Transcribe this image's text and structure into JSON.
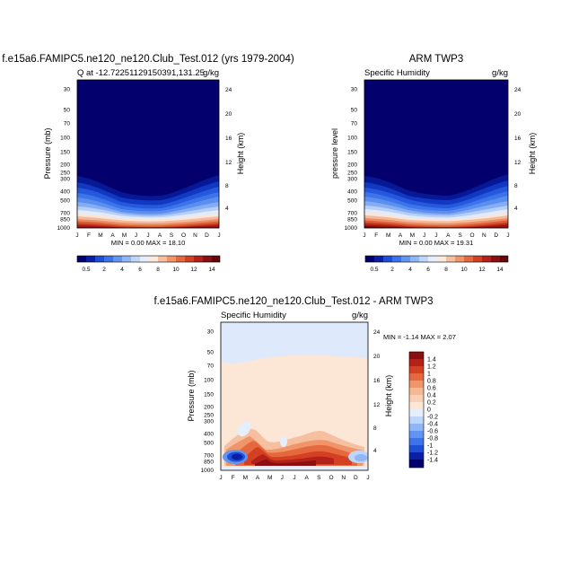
{
  "chart_data": [
    {
      "type": "heatmap",
      "title": "f.e15a6.FAMIPC5.ne120_ne120.Club_Test.012 (yrs 1979-2004)",
      "left_string": "Q at -12.72251129150391,131.25",
      "right_string": "g/kg",
      "ylabel": "Pressure (mb)",
      "ylabel_right": "Height (km)",
      "x_ticks": [
        "J",
        "F",
        "M",
        "A",
        "M",
        "J",
        "J",
        "A",
        "S",
        "O",
        "N",
        "D",
        "J"
      ],
      "y_ticks": [
        "30",
        "50",
        "70",
        "100",
        "150",
        "200",
        "250",
        "300",
        "400",
        "500",
        "700",
        "850",
        "1000"
      ],
      "y_ticks_right": [
        "24",
        "20",
        "16",
        "12",
        "8",
        "4"
      ],
      "stats": "MIN =   0.00 MAX =  18.10",
      "colorbar_labels": [
        "0.5",
        "2",
        "4",
        "6",
        "8",
        "10",
        "12",
        "14"
      ],
      "colorbar_colors": [
        "#03006d",
        "#0a1fa5",
        "#1d4fd6",
        "#3d73ea",
        "#6394f2",
        "#8fb6f6",
        "#bdd6fa",
        "#e4eefc",
        "#fde9dc",
        "#f6c0a0",
        "#ef9569",
        "#e5683e",
        "#d34022",
        "#b4201a",
        "#8a0f10",
        "#650709"
      ],
      "values_gkg_by_pressure_level": [
        {
          "p": 1000,
          "monthly": [
            16.8,
            17.2,
            17.8,
            17.2,
            15.2,
            13.0,
            11.8,
            11.8,
            12.6,
            14.2,
            15.8,
            16.8,
            16.8
          ]
        },
        {
          "p": 850,
          "monthly": [
            12.2,
            12.4,
            12.6,
            12.2,
            10.8,
            9.0,
            8.2,
            8.3,
            8.8,
            9.8,
            11.0,
            12.0,
            12.2
          ]
        },
        {
          "p": 700,
          "monthly": [
            7.8,
            7.9,
            8.0,
            7.6,
            6.4,
            5.0,
            4.4,
            4.4,
            4.8,
            5.6,
            6.6,
            7.6,
            7.8
          ]
        },
        {
          "p": 500,
          "monthly": [
            3.8,
            3.8,
            3.6,
            3.2,
            2.4,
            1.6,
            1.3,
            1.3,
            1.5,
            1.9,
            2.6,
            3.5,
            3.8
          ]
        },
        {
          "p": 400,
          "monthly": [
            2.2,
            2.2,
            2.0,
            1.7,
            1.2,
            0.8,
            0.6,
            0.6,
            0.7,
            0.9,
            1.4,
            2.0,
            2.2
          ]
        },
        {
          "p": 300,
          "monthly": [
            0.9,
            0.9,
            0.8,
            0.7,
            0.4,
            0.25,
            0.2,
            0.2,
            0.25,
            0.35,
            0.6,
            0.9,
            0.9
          ]
        },
        {
          "p": 200,
          "monthly": [
            0.1,
            0.1,
            0.1,
            0.08,
            0.05,
            0.03,
            0.02,
            0.02,
            0.03,
            0.04,
            0.06,
            0.1,
            0.1
          ]
        },
        {
          "p": 30,
          "monthly": [
            0,
            0,
            0,
            0,
            0,
            0,
            0,
            0,
            0,
            0,
            0,
            0,
            0
          ]
        }
      ]
    },
    {
      "type": "heatmap",
      "title": "ARM TWP3",
      "left_string": "Specific Humidity",
      "right_string": "g/kg",
      "ylabel": "pressure level",
      "ylabel_right": "Height (km)",
      "x_ticks": [
        "J",
        "F",
        "M",
        "A",
        "M",
        "J",
        "J",
        "A",
        "S",
        "O",
        "N",
        "D",
        "J"
      ],
      "y_ticks": [
        "30",
        "50",
        "70",
        "100",
        "150",
        "200",
        "250",
        "300",
        "400",
        "500",
        "700",
        "850",
        "1000"
      ],
      "y_ticks_right": [
        "24",
        "20",
        "16",
        "12",
        "8",
        "4"
      ],
      "stats": "MIN =   0.00 MAX =  19.31",
      "colorbar_labels": [
        "0.5",
        "2",
        "4",
        "6",
        "8",
        "10",
        "12",
        "14"
      ],
      "colorbar_colors": [
        "#03006d",
        "#0a1fa5",
        "#1d4fd6",
        "#3d73ea",
        "#6394f2",
        "#8fb6f6",
        "#bdd6fa",
        "#e4eefc",
        "#fde9dc",
        "#f6c0a0",
        "#ef9569",
        "#e5683e",
        "#d34022",
        "#b4201a",
        "#8a0f10",
        "#650709"
      ],
      "values_gkg_by_pressure_level": [
        {
          "p": 1000,
          "monthly": [
            17.6,
            18.2,
            18.8,
            17.6,
            15.6,
            13.4,
            12.2,
            12.2,
            13.0,
            14.6,
            16.2,
            17.4,
            17.6
          ]
        },
        {
          "p": 850,
          "monthly": [
            12.6,
            12.8,
            12.8,
            12.0,
            10.6,
            9.0,
            8.4,
            8.4,
            8.8,
            9.8,
            11.2,
            12.4,
            12.6
          ]
        },
        {
          "p": 700,
          "monthly": [
            8.0,
            8.0,
            7.9,
            7.2,
            6.0,
            4.8,
            4.2,
            4.2,
            4.6,
            5.4,
            6.6,
            7.8,
            8.0
          ]
        },
        {
          "p": 500,
          "monthly": [
            3.9,
            3.8,
            3.6,
            3.0,
            2.2,
            1.5,
            1.2,
            1.2,
            1.4,
            1.8,
            2.6,
            3.6,
            3.9
          ]
        },
        {
          "p": 400,
          "monthly": [
            2.3,
            2.2,
            2.0,
            1.6,
            1.1,
            0.7,
            0.55,
            0.55,
            0.65,
            0.9,
            1.4,
            2.1,
            2.3
          ]
        },
        {
          "p": 300,
          "monthly": [
            0.9,
            0.9,
            0.8,
            0.6,
            0.4,
            0.25,
            0.2,
            0.2,
            0.25,
            0.35,
            0.6,
            0.9,
            0.9
          ]
        },
        {
          "p": 200,
          "monthly": [
            0.1,
            0.1,
            0.1,
            0.08,
            0.05,
            0.03,
            0.02,
            0.02,
            0.03,
            0.04,
            0.06,
            0.1,
            0.1
          ]
        },
        {
          "p": 30,
          "monthly": [
            0,
            0,
            0,
            0,
            0,
            0,
            0,
            0,
            0,
            0,
            0,
            0,
            0
          ]
        }
      ]
    },
    {
      "type": "heatmap",
      "title": "f.e15a6.FAMIPC5.ne120_ne120.Club_Test.012 - ARM TWP3",
      "left_string": "Specific Humidity",
      "right_string": "g/kg",
      "ylabel": "Pressure (mb)",
      "ylabel_right": "Height (km)",
      "x_ticks": [
        "J",
        "F",
        "M",
        "A",
        "M",
        "J",
        "J",
        "A",
        "S",
        "O",
        "N",
        "D",
        "J"
      ],
      "y_ticks": [
        "30",
        "50",
        "70",
        "100",
        "150",
        "200",
        "250",
        "300",
        "400",
        "500",
        "700",
        "850",
        "1000"
      ],
      "y_ticks_right": [
        "24",
        "20",
        "16",
        "12",
        "8",
        "4"
      ],
      "stats": "MIN =  -1.14 MAX =   2.07",
      "colorbar_labels": [
        "1.4",
        "1.2",
        "1",
        "0.8",
        "0.6",
        "0.4",
        "0.2",
        "0",
        "-0.2",
        "-0.4",
        "-0.6",
        "-0.8",
        "-1",
        "-1.2",
        "-1.4"
      ],
      "colorbar_colors": [
        "#8a0f10",
        "#b4201a",
        "#d34022",
        "#e5683e",
        "#ef9569",
        "#f6b890",
        "#f8d0b8",
        "#fce6d6",
        "#e4eefc",
        "#bdd6fa",
        "#8fb6f6",
        "#6394f2",
        "#3d73ea",
        "#1d4fd6",
        "#0a1fa5",
        "#03006d"
      ],
      "anomalies_gkg_by_pressure_level": [
        {
          "p": 1000,
          "monthly": [
            0.0,
            -0.2,
            -0.4,
            1.9,
            1.6,
            1.2,
            0.9,
            1.3,
            1.1,
            0.8,
            0.2,
            0.0,
            0.0
          ]
        },
        {
          "p": 850,
          "monthly": [
            -1.1,
            -0.9,
            -0.6,
            1.6,
            1.4,
            0.8,
            0.5,
            0.6,
            0.7,
            0.6,
            0.3,
            -0.4,
            -1.1
          ]
        },
        {
          "p": 700,
          "monthly": [
            -0.4,
            -0.2,
            0.3,
            1.0,
            0.9,
            0.5,
            0.3,
            0.3,
            0.4,
            0.3,
            0.2,
            -0.2,
            -0.4
          ]
        },
        {
          "p": 500,
          "monthly": [
            0.1,
            0.1,
            0.2,
            0.5,
            0.6,
            0.3,
            0.2,
            0.2,
            0.2,
            0.2,
            0.1,
            0.1,
            0.1
          ]
        },
        {
          "p": 400,
          "monthly": [
            0.1,
            0.0,
            -0.1,
            0.2,
            0.2,
            0.2,
            0.1,
            0.1,
            0.1,
            0.1,
            0.1,
            0.1,
            0.1
          ]
        },
        {
          "p": 300,
          "monthly": [
            0.05,
            0.05,
            0.05,
            0.05,
            0.05,
            0.05,
            0.05,
            0.05,
            0.05,
            0.05,
            0.05,
            0.05,
            0.05
          ]
        },
        {
          "p": 70,
          "monthly": [
            0.02,
            0.02,
            0.02,
            0.02,
            0.02,
            0.02,
            0.02,
            0.02,
            0.02,
            0.02,
            0.02,
            0.02,
            0.02
          ]
        },
        {
          "p": 30,
          "monthly": [
            -0.02,
            -0.02,
            -0.02,
            -0.02,
            -0.02,
            -0.02,
            -0.02,
            -0.02,
            -0.02,
            -0.02,
            -0.02,
            -0.02,
            -0.02
          ]
        }
      ]
    }
  ]
}
